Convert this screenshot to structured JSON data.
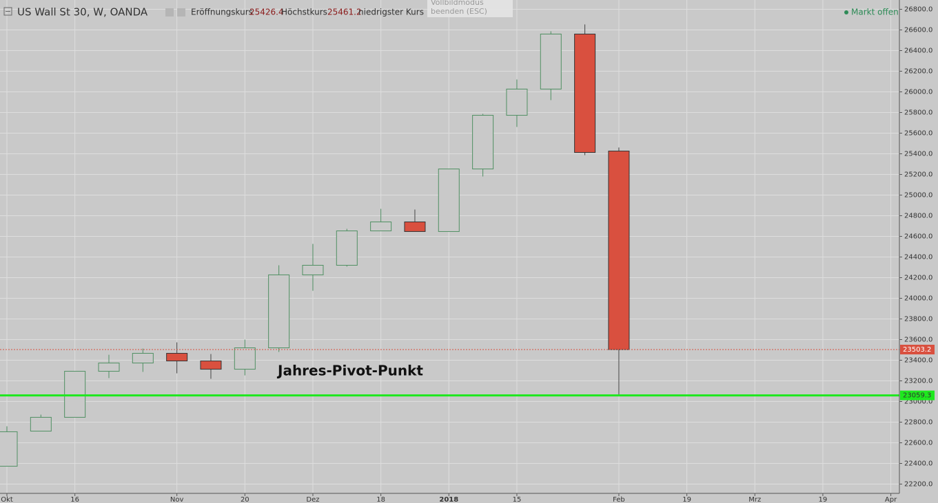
{
  "chart_data": {
    "type": "candlestick",
    "title": "US Wall St 30, W, OANDA",
    "categories": [
      "Okt",
      null,
      "16",
      null,
      null,
      "Nov",
      null,
      "20",
      null,
      "Dez",
      null,
      "18",
      null,
      "2018",
      null,
      "15",
      null,
      null,
      "Feb",
      null,
      "19",
      null,
      "Mrz",
      null,
      "19",
      null,
      "Apr"
    ],
    "open": [
      22373,
      22713,
      22847,
      23293,
      23373,
      23467,
      23393,
      23313,
      23520,
      24227,
      24320,
      24653,
      24740,
      24647,
      25253,
      25773,
      26027,
      26560,
      25426.4,
      null,
      null,
      null,
      null,
      null,
      null,
      null,
      null
    ],
    "high": [
      22760,
      22873,
      23293,
      23453,
      23513,
      23573,
      23460,
      23600,
      24320,
      24527,
      24673,
      24867,
      24860,
      25253,
      25787,
      26120,
      26587,
      26653,
      25461.2,
      null,
      null,
      null,
      null,
      null,
      null,
      null,
      null
    ],
    "low": [
      22373,
      22713,
      22847,
      23227,
      23287,
      23273,
      23220,
      23253,
      23480,
      24073,
      24307,
      24653,
      24647,
      24647,
      25180,
      25660,
      25920,
      25387,
      23050,
      null,
      null,
      null,
      null,
      null,
      null,
      null,
      null
    ],
    "close": [
      22707,
      22847,
      23293,
      23373,
      23467,
      23393,
      23313,
      23520,
      24227,
      24320,
      24653,
      24740,
      24647,
      25253,
      25773,
      26027,
      26560,
      25413,
      23503.2,
      null,
      null,
      null,
      null,
      null,
      null,
      null,
      null
    ],
    "up_color": "#4f8f62",
    "down_color": "#d9503f",
    "ylim": [
      22110,
      26890
    ],
    "yticks": [
      {
        "value": 22200,
        "label": "22200.0"
      },
      {
        "value": 22400,
        "label": "22400.0"
      },
      {
        "value": 22600,
        "label": "22600.0"
      },
      {
        "value": 22800,
        "label": "22800.0"
      },
      {
        "value": 23000,
        "label": "23000.0"
      },
      {
        "value": 23200,
        "label": "23200.0"
      },
      {
        "value": 23400,
        "label": "23400.0"
      },
      {
        "value": 23600,
        "label": "23600.0"
      },
      {
        "value": 23800,
        "label": "23800.0"
      },
      {
        "value": 24000,
        "label": "24000.0"
      },
      {
        "value": 24200,
        "label": "24200.0"
      },
      {
        "value": 24400,
        "label": "24400.0"
      },
      {
        "value": 24600,
        "label": "24600.0"
      },
      {
        "value": 24800,
        "label": "24800.0"
      },
      {
        "value": 25000,
        "label": "25000.0"
      },
      {
        "value": 25200,
        "label": "25200.0"
      },
      {
        "value": 25400,
        "label": "25400.0"
      },
      {
        "value": 25600,
        "label": "25600.0"
      },
      {
        "value": 25800,
        "label": "25800.0"
      },
      {
        "value": 26000,
        "label": "26000.0"
      },
      {
        "value": 26200,
        "label": "26200.0"
      },
      {
        "value": 26400,
        "label": "26400.0"
      },
      {
        "value": 26600,
        "label": "26600.0"
      },
      {
        "value": 26800,
        "label": "26800.0"
      }
    ],
    "grid": true,
    "pivot": {
      "value": 23059.3,
      "color": "#1ee81e"
    },
    "annotation": "Jahres-Pivot-Punkt",
    "header": {
      "open_label": "Eröffnungskurs",
      "high_label": "Höchstkurs",
      "low_label": "niedrigster Kurs"
    }
  },
  "ui": {
    "tooltip": [
      "Vollbildmodus",
      "beenden (ESC)"
    ],
    "status": "Markt offen"
  }
}
